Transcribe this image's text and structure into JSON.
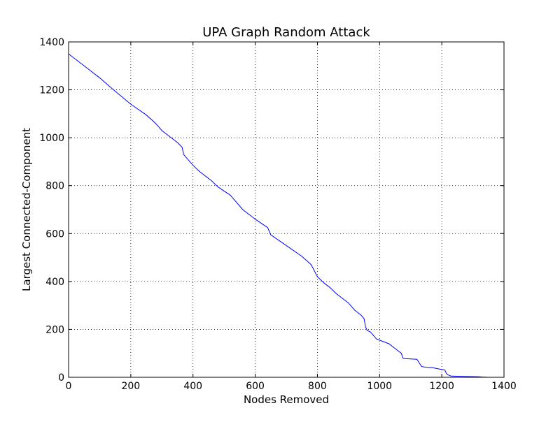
{
  "chart_data": {
    "type": "line",
    "title": "UPA Graph Random Attack",
    "xlabel": "Nodes Removed",
    "ylabel": "Largest Connected-Component",
    "xlim": [
      0,
      1400
    ],
    "ylim": [
      0,
      1400
    ],
    "xticks": [
      0,
      200,
      400,
      600,
      800,
      1000,
      1200,
      1400
    ],
    "yticks": [
      0,
      200,
      400,
      600,
      800,
      1000,
      1200,
      1400
    ],
    "grid": true,
    "legend": "none",
    "colors": {
      "series": "#0000ff",
      "grid": "#000000",
      "axes": "#000000"
    },
    "series": [
      {
        "x": [
          0,
          50,
          100,
          140,
          200,
          250,
          280,
          300,
          330,
          350,
          365,
          370,
          400,
          420,
          460,
          480,
          520,
          540,
          560,
          600,
          640,
          650,
          700,
          750,
          780,
          800,
          820,
          840,
          860,
          880,
          900,
          920,
          940,
          950,
          955,
          960,
          970,
          980,
          990,
          1000,
          1030,
          1050,
          1060,
          1070,
          1075,
          1080,
          1120,
          1125,
          1130,
          1135,
          1150,
          1170,
          1190,
          1210,
          1215,
          1220,
          1230,
          1260,
          1290,
          1320,
          1330,
          1350
        ],
        "y": [
          1350,
          1300,
          1250,
          1205,
          1140,
          1095,
          1060,
          1030,
          1000,
          980,
          960,
          930,
          885,
          860,
          820,
          795,
          760,
          730,
          700,
          660,
          625,
          595,
          550,
          505,
          470,
          420,
          395,
          375,
          350,
          330,
          310,
          280,
          260,
          245,
          210,
          195,
          190,
          175,
          160,
          155,
          140,
          120,
          110,
          100,
          80,
          78,
          75,
          65,
          55,
          45,
          42,
          40,
          35,
          30,
          15,
          10,
          5,
          4,
          3,
          2,
          1,
          0
        ]
      }
    ]
  }
}
